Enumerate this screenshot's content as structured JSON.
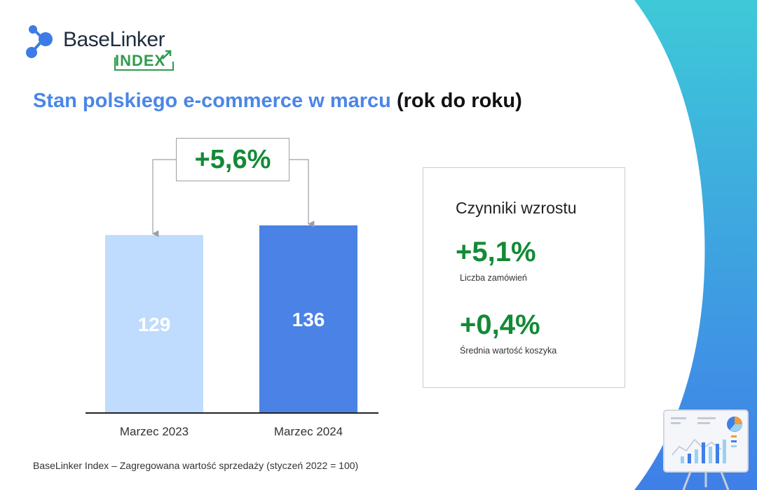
{
  "brand": {
    "name": "BaseLinker",
    "sub": "INDEX"
  },
  "title": {
    "main": "Stan polskiego e-commerce w marcu",
    "suffix": "(rok do roku)"
  },
  "growth_label": "+5,6%",
  "factors": {
    "title": "Czynniki wzrostu",
    "items": [
      {
        "value": "+5,1%",
        "label": "Liczba zamówień"
      },
      {
        "value": "+0,4%",
        "label": "Średnia wartość koszyka"
      }
    ]
  },
  "footnote": "BaseLinker Index – Zagregowana wartość sprzedaży (styczeń 2022 = 100)",
  "colors": {
    "bar_2023": "#bfdbfd",
    "bar_2024": "#4a82e6",
    "title_blue": "#4a86e8",
    "positive_green": "#138a36",
    "decor_gradient_top": "#3ec9d8",
    "decor_gradient_bottom": "#3f7fe8"
  },
  "chart_data": {
    "type": "bar",
    "categories": [
      "Marzec 2023",
      "Marzec 2024"
    ],
    "values": [
      129,
      136
    ],
    "title": "",
    "xlabel": "",
    "ylabel": "",
    "ylim": [
      0,
      136
    ],
    "grid": false,
    "data_labels": [
      "129",
      "136"
    ],
    "annotation": "+5,6%"
  }
}
